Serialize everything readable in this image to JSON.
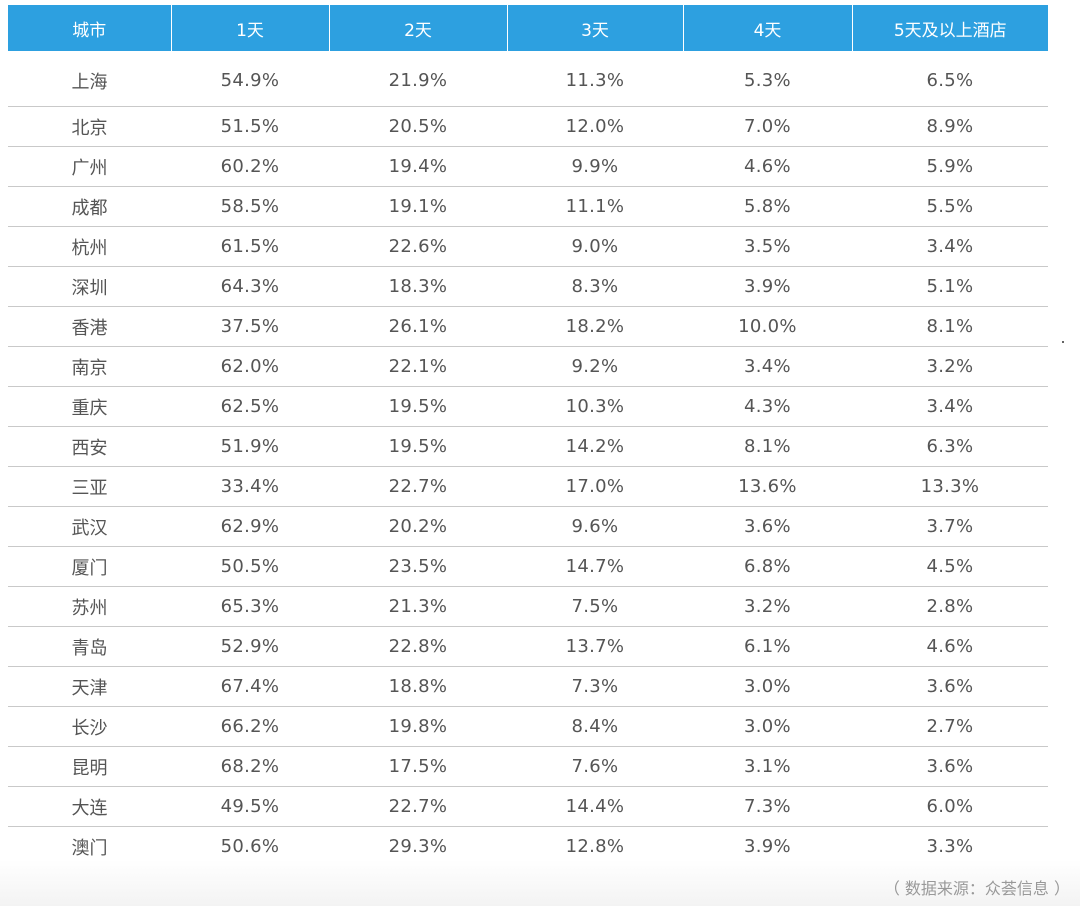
{
  "chart_data": {
    "type": "table",
    "columns": [
      "城市",
      "1天",
      "2天",
      "3天",
      "4天",
      "5天及以上酒店"
    ],
    "rows": [
      [
        "上海",
        "54.9%",
        "21.9%",
        "11.3%",
        "5.3%",
        "6.5%"
      ],
      [
        "北京",
        "51.5%",
        "20.5%",
        "12.0%",
        "7.0%",
        "8.9%"
      ],
      [
        "广州",
        "60.2%",
        "19.4%",
        "9.9%",
        "4.6%",
        "5.9%"
      ],
      [
        "成都",
        "58.5%",
        "19.1%",
        "11.1%",
        "5.8%",
        "5.5%"
      ],
      [
        "杭州",
        "61.5%",
        "22.6%",
        "9.0%",
        "3.5%",
        "3.4%"
      ],
      [
        "深圳",
        "64.3%",
        "18.3%",
        "8.3%",
        "3.9%",
        "5.1%"
      ],
      [
        "香港",
        "37.5%",
        "26.1%",
        "18.2%",
        "10.0%",
        "8.1%"
      ],
      [
        "南京",
        "62.0%",
        "22.1%",
        "9.2%",
        "3.4%",
        "3.2%"
      ],
      [
        "重庆",
        "62.5%",
        "19.5%",
        "10.3%",
        "4.3%",
        "3.4%"
      ],
      [
        "西安",
        "51.9%",
        "19.5%",
        "14.2%",
        "8.1%",
        "6.3%"
      ],
      [
        "三亚",
        "33.4%",
        "22.7%",
        "17.0%",
        "13.6%",
        "13.3%"
      ],
      [
        "武汉",
        "62.9%",
        "20.2%",
        "9.6%",
        "3.6%",
        "3.7%"
      ],
      [
        "厦门",
        "50.5%",
        "23.5%",
        "14.7%",
        "6.8%",
        "4.5%"
      ],
      [
        "苏州",
        "65.3%",
        "21.3%",
        "7.5%",
        "3.2%",
        "2.8%"
      ],
      [
        "青岛",
        "52.9%",
        "22.8%",
        "13.7%",
        "6.1%",
        "4.6%"
      ],
      [
        "天津",
        "67.4%",
        "18.8%",
        "7.3%",
        "3.0%",
        "3.6%"
      ],
      [
        "长沙",
        "66.2%",
        "19.8%",
        "8.4%",
        "3.0%",
        "2.7%"
      ],
      [
        "昆明",
        "68.2%",
        "17.5%",
        "7.6%",
        "3.1%",
        "3.6%"
      ],
      [
        "大连",
        "49.5%",
        "22.7%",
        "14.4%",
        "7.3%",
        "6.0%"
      ],
      [
        "澳门",
        "50.6%",
        "29.3%",
        "12.8%",
        "3.9%",
        "3.3%"
      ]
    ],
    "header_color": "#2da0e0",
    "annotations": [
      "（ 数据来源：众荟信息 ）"
    ]
  },
  "footer": {
    "source": "（ 数据来源：众荟信息 ）"
  },
  "colors": {
    "header_bg": "#2da0e0",
    "header_text": "#ffffff",
    "cell_text": "#555555",
    "row_divider": "#c9c9c9",
    "source_text": "#999999"
  }
}
